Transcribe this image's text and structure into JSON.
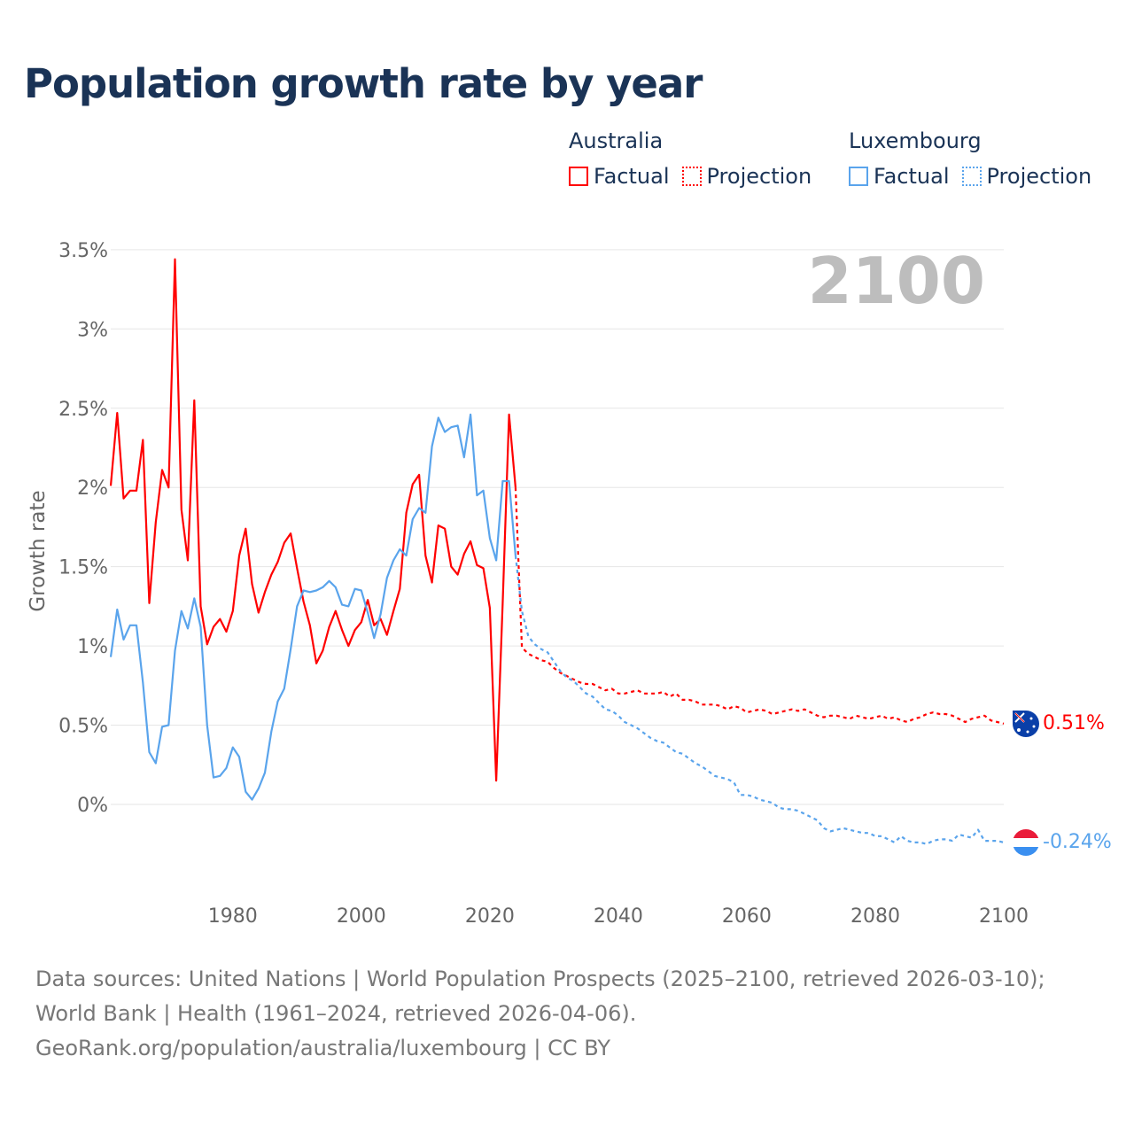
{
  "title": "Population growth rate by year",
  "legend": {
    "groups": [
      {
        "name": "Australia",
        "factual": "Factual",
        "projection": "Projection",
        "color": "#ff0000"
      },
      {
        "name": "Luxembourg",
        "factual": "Factual",
        "projection": "Projection",
        "color": "#5aa4ec"
      }
    ]
  },
  "year_display": "2100",
  "end_labels": {
    "australia": "0.51%",
    "luxembourg": "-0.24%"
  },
  "footer": {
    "sources": "Data sources: United Nations | World Population Prospects (2025–2100, retrieved 2026-03-10); World Bank | Health (1961–2024, retrieved 2026-04-06).",
    "link": "GeoRank.org/population/australia/luxembourg | CC BY"
  },
  "chart_data": {
    "type": "line",
    "title": "Population growth rate by year",
    "xlabel": "",
    "ylabel": "Growth rate",
    "xlim": [
      1961,
      2100
    ],
    "ylim": [
      -0.5,
      3.5
    ],
    "grid": true,
    "legend_position": "top-right",
    "y_ticks": [
      0,
      0.5,
      1,
      1.5,
      2,
      2.5,
      3,
      3.5
    ],
    "y_tick_labels": [
      "0%",
      "0.5%",
      "1%",
      "1.5%",
      "2%",
      "2.5%",
      "3%",
      "3.5%"
    ],
    "x_ticks": [
      1980,
      2000,
      2020,
      2040,
      2060,
      2080,
      2100
    ],
    "x_tick_labels": [
      "1980",
      "2000",
      "2020",
      "2040",
      "2060",
      "2080",
      "2100"
    ],
    "series": [
      {
        "name": "Australia Factual",
        "country": "Australia",
        "kind": "factual",
        "color": "#ff0000",
        "start_year": 1961,
        "values": [
          2.01,
          2.47,
          1.93,
          1.98,
          1.98,
          2.3,
          1.27,
          1.78,
          2.11,
          2.0,
          3.44,
          1.86,
          1.54,
          2.55,
          1.25,
          1.01,
          1.12,
          1.17,
          1.09,
          1.22,
          1.57,
          1.74,
          1.39,
          1.21,
          1.34,
          1.45,
          1.53,
          1.65,
          1.71,
          1.49,
          1.28,
          1.13,
          0.89,
          0.97,
          1.12,
          1.22,
          1.1,
          1.0,
          1.1,
          1.15,
          1.29,
          1.13,
          1.17,
          1.07,
          1.22,
          1.36,
          1.84,
          2.02,
          2.08,
          1.57,
          1.4,
          1.76,
          1.74,
          1.5,
          1.45,
          1.58,
          1.66,
          1.51,
          1.49,
          1.24,
          0.15,
          1.27,
          2.46,
          2.0
        ]
      },
      {
        "name": "Australia Projection",
        "country": "Australia",
        "kind": "projection",
        "color": "#ff0000",
        "start_year": 2025,
        "values": [
          0.99,
          0.95,
          0.93,
          0.91,
          0.9,
          0.86,
          0.83,
          0.81,
          0.79,
          0.77,
          0.76,
          0.76,
          0.74,
          0.72,
          0.73,
          0.7,
          0.7,
          0.71,
          0.72,
          0.7,
          0.7,
          0.7,
          0.71,
          0.68,
          0.7,
          0.66,
          0.66,
          0.65,
          0.63,
          0.63,
          0.63,
          0.62,
          0.6,
          0.62,
          0.61,
          0.58,
          0.59,
          0.6,
          0.59,
          0.57,
          0.58,
          0.59,
          0.6,
          0.59,
          0.6,
          0.58,
          0.56,
          0.55,
          0.56,
          0.56,
          0.55,
          0.54,
          0.56,
          0.55,
          0.54,
          0.55,
          0.56,
          0.54,
          0.55,
          0.53,
          0.52,
          0.54,
          0.55,
          0.57,
          0.58,
          0.57,
          0.57,
          0.56,
          0.54,
          0.52,
          0.54,
          0.55,
          0.56,
          0.53,
          0.52,
          0.51
        ]
      },
      {
        "name": "Luxembourg Factual",
        "country": "Luxembourg",
        "kind": "factual",
        "color": "#5aa4ec",
        "start_year": 1961,
        "values": [
          0.93,
          1.23,
          1.04,
          1.13,
          1.13,
          0.77,
          0.33,
          0.26,
          0.49,
          0.5,
          0.97,
          1.22,
          1.11,
          1.3,
          1.12,
          0.5,
          0.17,
          0.18,
          0.23,
          0.36,
          0.3,
          0.08,
          0.03,
          0.1,
          0.2,
          0.46,
          0.65,
          0.73,
          0.98,
          1.25,
          1.35,
          1.34,
          1.35,
          1.37,
          1.41,
          1.37,
          1.26,
          1.25,
          1.36,
          1.35,
          1.21,
          1.05,
          1.2,
          1.43,
          1.54,
          1.61,
          1.57,
          1.8,
          1.87,
          1.84,
          2.26,
          2.44,
          2.35,
          2.38,
          2.39,
          2.19,
          2.46,
          1.95,
          1.98,
          1.68,
          1.54,
          2.04,
          2.04,
          1.57
        ]
      },
      {
        "name": "Luxembourg Projection",
        "country": "Luxembourg",
        "kind": "projection",
        "color": "#5aa4ec",
        "start_year": 2025,
        "values": [
          1.22,
          1.06,
          1.01,
          0.98,
          0.96,
          0.9,
          0.84,
          0.8,
          0.78,
          0.74,
          0.7,
          0.68,
          0.64,
          0.6,
          0.59,
          0.56,
          0.52,
          0.5,
          0.48,
          0.45,
          0.42,
          0.4,
          0.39,
          0.36,
          0.33,
          0.32,
          0.29,
          0.26,
          0.24,
          0.21,
          0.18,
          0.17,
          0.16,
          0.14,
          0.06,
          0.06,
          0.05,
          0.03,
          0.02,
          0.01,
          -0.02,
          -0.03,
          -0.03,
          -0.04,
          -0.06,
          -0.08,
          -0.1,
          -0.15,
          -0.17,
          -0.16,
          -0.15,
          -0.16,
          -0.17,
          -0.18,
          -0.18,
          -0.2,
          -0.2,
          -0.22,
          -0.24,
          -0.2,
          -0.23,
          -0.24,
          -0.24,
          -0.25,
          -0.23,
          -0.22,
          -0.22,
          -0.23,
          -0.19,
          -0.2,
          -0.21,
          -0.16,
          -0.23,
          -0.23,
          -0.23,
          -0.24
        ]
      }
    ]
  }
}
